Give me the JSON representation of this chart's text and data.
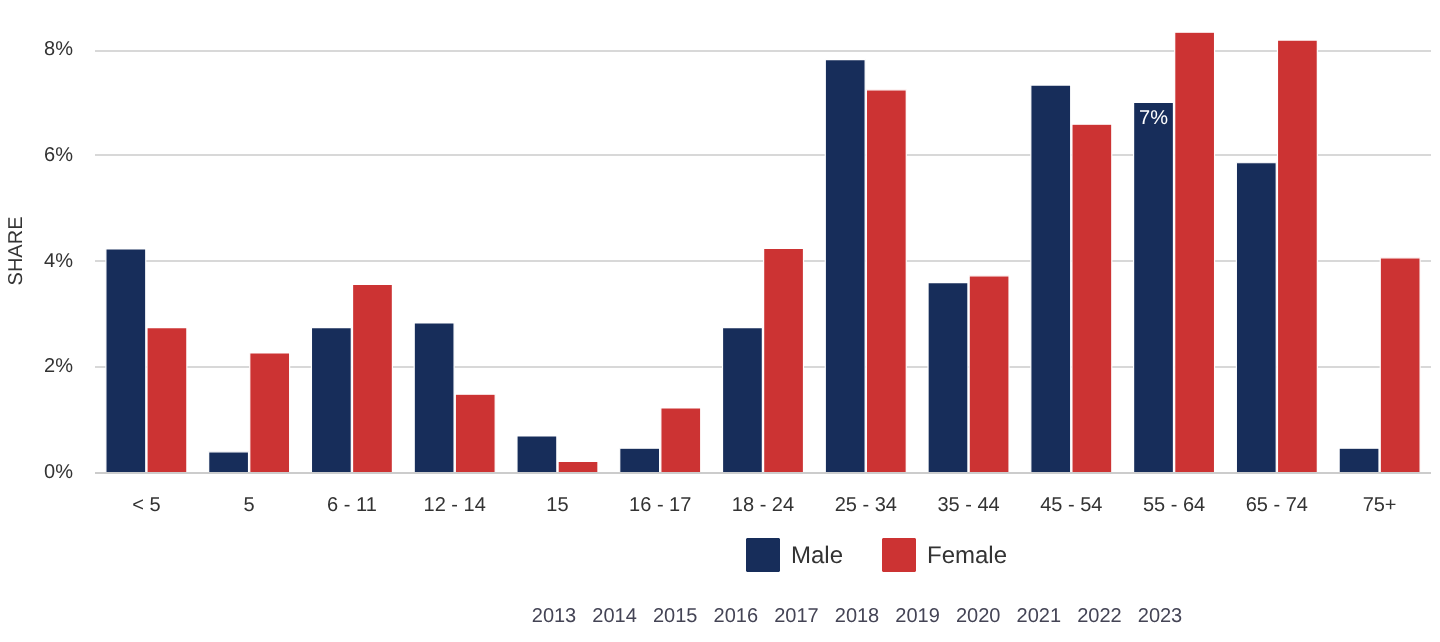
{
  "chart_data": {
    "type": "bar",
    "ylabel": "SHARE",
    "categories": [
      "< 5",
      "5",
      "6 - 11",
      "12 - 14",
      "15",
      "16 - 17",
      "18 - 24",
      "25 - 34",
      "35 - 44",
      "45 - 54",
      "55 - 64",
      "65 - 74",
      "75+"
    ],
    "series": [
      {
        "name": "Male",
        "color": "#172d5a",
        "values": [
          4.24,
          0.4,
          2.75,
          2.84,
          0.7,
          0.47,
          2.75,
          7.82,
          3.6,
          7.34,
          7.01,
          5.87,
          0.47
        ]
      },
      {
        "name": "Female",
        "color": "#cc3333",
        "values": [
          2.75,
          2.27,
          3.57,
          1.49,
          0.22,
          1.23,
          4.25,
          7.25,
          3.73,
          6.6,
          8.34,
          8.19,
          4.07
        ]
      }
    ],
    "ylim": [
      0,
      8.4
    ],
    "yticks": [
      {
        "value": 0,
        "label": "0%"
      },
      {
        "value": 2,
        "label": "2%"
      },
      {
        "value": 4,
        "label": "4%"
      },
      {
        "value": 6,
        "label": "6%"
      },
      {
        "value": 8,
        "label": "8%"
      }
    ],
    "grid": "y",
    "legend": "bottom",
    "annotations": [
      {
        "text": "7%",
        "x": "55 - 64",
        "y": 7.01
      },
      "2013",
      "2014",
      "2015",
      "2016",
      "2017",
      "2018",
      "2019",
      "2020",
      "2021",
      "2022",
      "2023"
    ]
  }
}
